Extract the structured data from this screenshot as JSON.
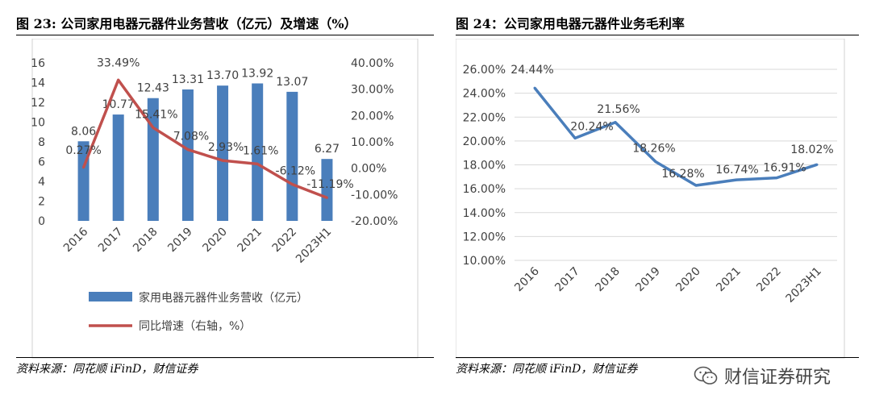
{
  "chart_data": [
    {
      "type": "bar",
      "title": "图 23: 公司家用电器元器件业务营收（亿元）及增速（%）",
      "categories": [
        "2016",
        "2017",
        "2018",
        "2019",
        "2020",
        "2021",
        "2022",
        "2023H1"
      ],
      "series": [
        {
          "name": "家用电器元器件业务营收（亿元）",
          "type": "bar",
          "axis": "left",
          "color": "#4a7ebb",
          "values": [
            8.06,
            10.77,
            12.43,
            13.31,
            13.7,
            13.92,
            13.07,
            6.27
          ],
          "labels": [
            "8.06",
            "10.77",
            "12.43",
            "13.31",
            "13.70",
            "13.92",
            "13.07",
            "6.27"
          ]
        },
        {
          "name": "同比增速（右轴，%）",
          "type": "line",
          "axis": "right",
          "color": "#c0504d",
          "values": [
            0.27,
            33.49,
            15.41,
            7.08,
            2.93,
            1.61,
            -6.12,
            -11.19
          ],
          "labels": [
            "0.27%",
            "33.49%",
            "15.41%",
            "7.08%",
            "2.93%",
            "1.61%",
            "-6.12%",
            "-11.19%"
          ]
        }
      ],
      "ylim": [
        0,
        16
      ],
      "yticks": [
        "0",
        "2",
        "4",
        "6",
        "8",
        "10",
        "12",
        "14",
        "16"
      ],
      "y2lim": [
        -20,
        40
      ],
      "y2ticks": [
        "-20.00%",
        "-10.00%",
        "0.00%",
        "10.00%",
        "20.00%",
        "30.00%",
        "40.00%"
      ],
      "legend_position": "bottom",
      "source": "资料来源：同花顺 iFinD，财信证券"
    },
    {
      "type": "line",
      "title": "图 24：公司家用电器元器件业务毛利率",
      "categories": [
        "2016",
        "2017",
        "2018",
        "2019",
        "2020",
        "2021",
        "2022",
        "2023H1"
      ],
      "series": [
        {
          "color": "#4a7ebb",
          "values": [
            24.44,
            20.24,
            21.56,
            18.26,
            16.28,
            16.74,
            16.91,
            18.02
          ],
          "labels": [
            "24.44%",
            "20.24%",
            "21.56%",
            "18.26%",
            "16.28%",
            "16.74%",
            "16.91%",
            "18.02%"
          ]
        }
      ],
      "ylim": [
        10,
        26
      ],
      "yticks": [
        "10.00%",
        "12.00%",
        "14.00%",
        "16.00%",
        "18.00%",
        "20.00%",
        "22.00%",
        "24.00%",
        "26.00%"
      ],
      "grid": true,
      "source": "资料来源：同花顺 iFinD，财信证券"
    }
  ],
  "watermark": {
    "text": "财信证券研究",
    "icon": "wechat-icon"
  }
}
